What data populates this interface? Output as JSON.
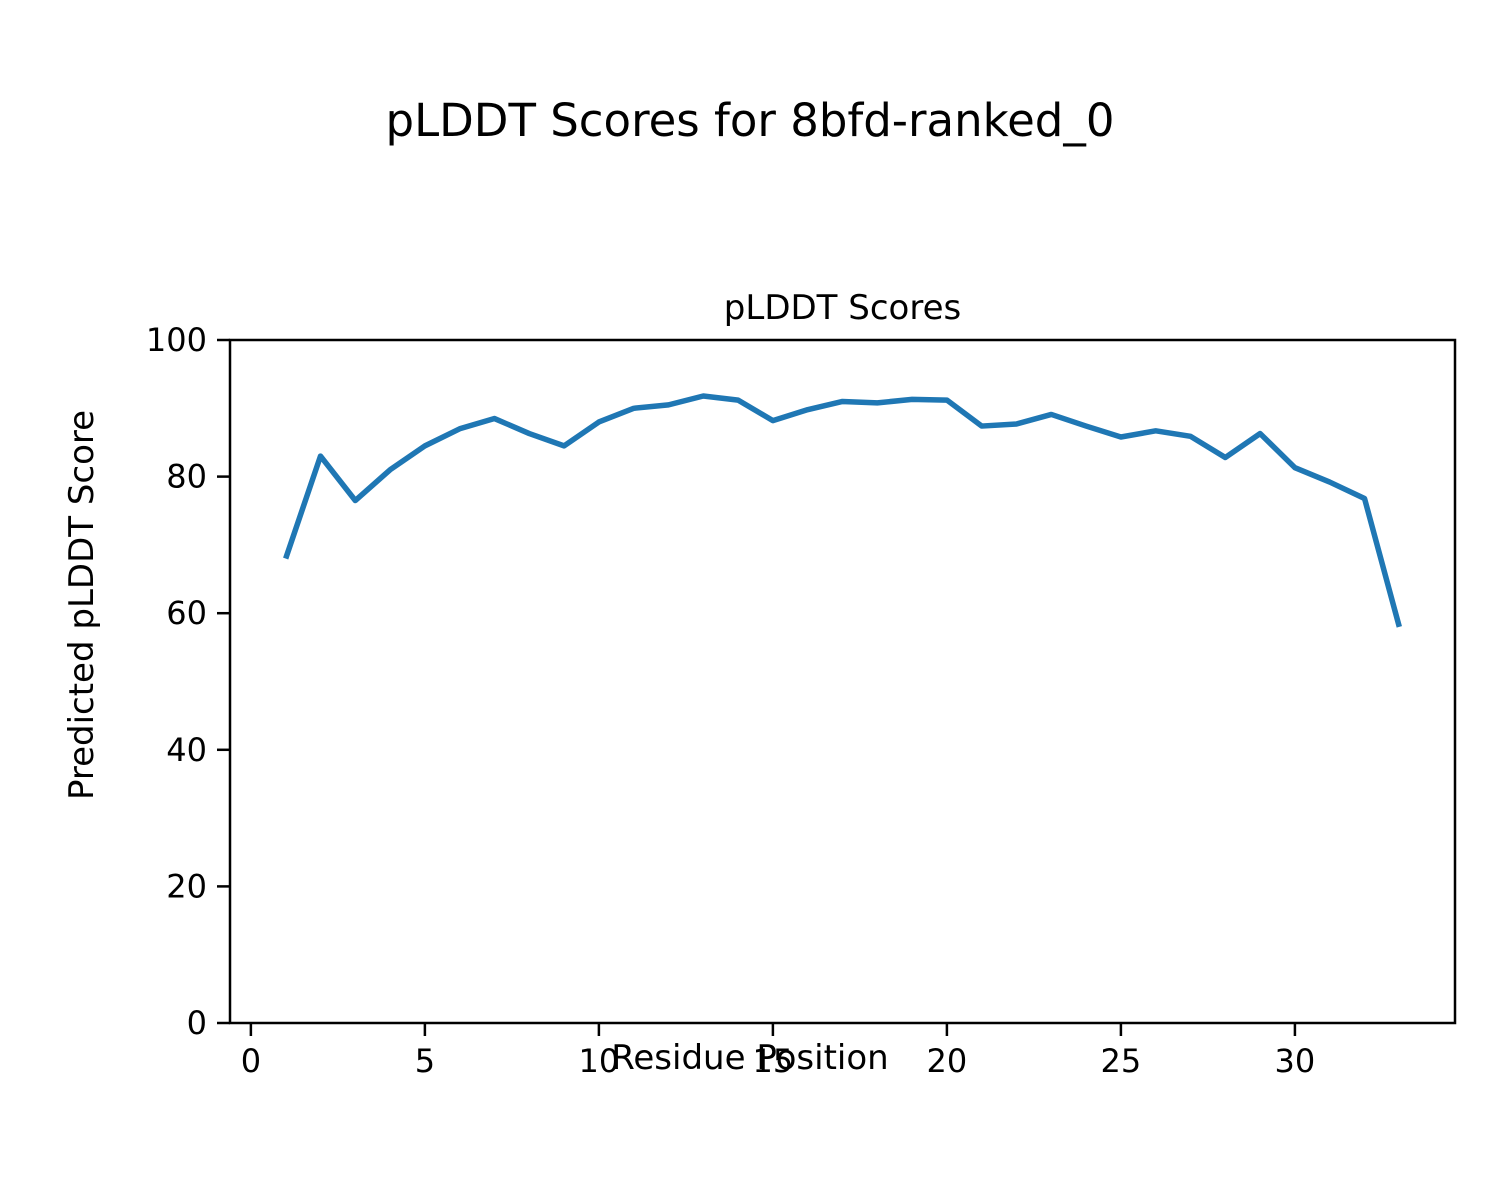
{
  "figure": {
    "suptitle": "pLDDT Scores for 8bfd-ranked_0"
  },
  "chart_data": {
    "type": "line",
    "title": "pLDDT Scores",
    "xlabel": "Residue Position",
    "ylabel": "Predicted pLDDT Score",
    "x": [
      1,
      2,
      3,
      4,
      5,
      6,
      7,
      8,
      9,
      10,
      11,
      12,
      13,
      14,
      15,
      16,
      17,
      18,
      19,
      20,
      21,
      22,
      23,
      24,
      25,
      26,
      27,
      28,
      29,
      30,
      31,
      32,
      33
    ],
    "series": [
      {
        "name": "pLDDT",
        "values": [
          68,
          83,
          76.5,
          81,
          84.5,
          87,
          88.5,
          86.3,
          84.5,
          88,
          90,
          90.5,
          91.8,
          91.2,
          88.2,
          89.8,
          91,
          90.8,
          91.3,
          91.2,
          87.4,
          87.7,
          89.1,
          87.4,
          85.8,
          86.7,
          85.9,
          82.8,
          86.3,
          81.3,
          79.2,
          76.8,
          58
        ]
      }
    ],
    "xlim": [
      -0.6,
      34.6
    ],
    "ylim": [
      0,
      100
    ],
    "xticks": [
      0,
      5,
      10,
      15,
      20,
      25,
      30
    ],
    "yticks": [
      0,
      20,
      40,
      60,
      80,
      100
    ],
    "grid": false,
    "legend_position": "none",
    "line_color": "#1f77b4",
    "frame_color": "#000000",
    "text_color": "#000000"
  }
}
